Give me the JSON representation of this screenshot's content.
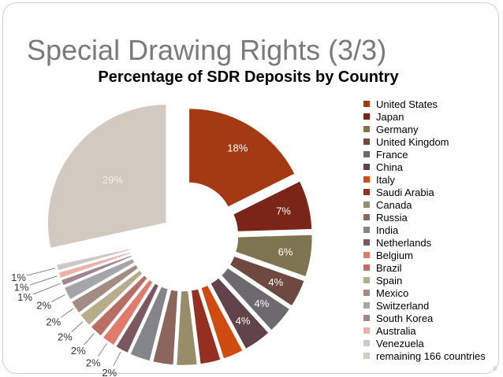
{
  "slide": {
    "title": "Special Drawing Rights (3/3)",
    "page_number": "8"
  },
  "chart_data": {
    "type": "pie",
    "title": "Percentage of SDR Deposits by Country",
    "legend_position": "right",
    "exploded": true,
    "slices": [
      {
        "label": "United States",
        "value": 18,
        "display": "18%",
        "color": "#a33a13"
      },
      {
        "label": "Japan",
        "value": 7,
        "display": "7%",
        "color": "#7b2418"
      },
      {
        "label": "Germany",
        "value": 6,
        "display": "6%",
        "color": "#7f7450"
      },
      {
        "label": "United Kingdom",
        "value": 4,
        "display": "4%",
        "color": "#6e4940"
      },
      {
        "label": "France",
        "value": 4,
        "display": "4%",
        "color": "#6c6a6e"
      },
      {
        "label": "China",
        "value": 4,
        "display": "4%",
        "color": "#614349"
      },
      {
        "label": "Italy",
        "value": 3,
        "display": "",
        "color": "#cf4b12"
      },
      {
        "label": "Saudi Arabia",
        "value": 3,
        "display": "",
        "color": "#942f21"
      },
      {
        "label": "Canada",
        "value": 3,
        "display": "",
        "color": "#978d68"
      },
      {
        "label": "Russia",
        "value": 3,
        "display": "",
        "color": "#8c655c"
      },
      {
        "label": "India",
        "value": 3,
        "display": "",
        "color": "#85848b"
      },
      {
        "label": "Netherlands",
        "value": 2,
        "display": "2%",
        "color": "#7b5860"
      },
      {
        "label": "Belgium",
        "value": 2,
        "display": "2%",
        "color": "#de7b6a"
      },
      {
        "label": "Brazil",
        "value": 2,
        "display": "2%",
        "color": "#b86e65"
      },
      {
        "label": "Spain",
        "value": 2,
        "display": "2%",
        "color": "#b6ad8c"
      },
      {
        "label": "Mexico",
        "value": 2,
        "display": "2%",
        "color": "#a38a84"
      },
      {
        "label": "Switzerland",
        "value": 2,
        "display": "2%",
        "color": "#a5a4a9"
      },
      {
        "label": "South Korea",
        "value": 1,
        "display": "1%",
        "color": "#a1878d"
      },
      {
        "label": "Australia",
        "value": 1,
        "display": "1%",
        "color": "#eab3aa"
      },
      {
        "label": "Venezuela",
        "value": 1,
        "display": "1%",
        "color": "#cfc6c8"
      },
      {
        "label": "remaining 166 countries",
        "value": 29,
        "display": "29%",
        "color": "#d2cac0"
      }
    ]
  }
}
